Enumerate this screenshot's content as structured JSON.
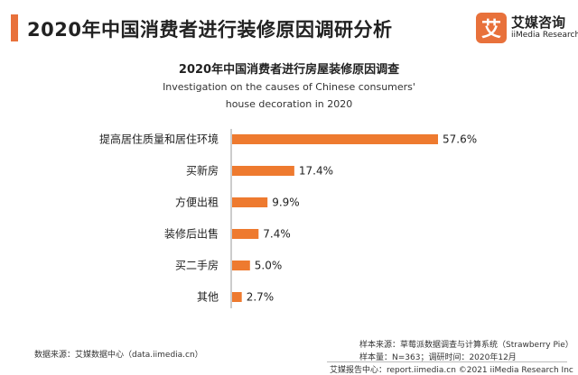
{
  "header": {
    "title": "2020年中国消费者进行装修原因调研分析",
    "logo_glyph": "艾",
    "brand_cn": "艾媒咨询",
    "brand_en": "iiMedia Research"
  },
  "colors": {
    "accent": "#e8713b",
    "bar": "#ee7a2f",
    "logo_bg": "#e8713b"
  },
  "chart_data": {
    "type": "bar",
    "orientation": "horizontal",
    "title": "2020年中国消费者进行房屋装修原因调查",
    "subtitle_lines": [
      "Investigation on the causes of Chinese consumers'",
      "house decoration in 2020"
    ],
    "categories": [
      "提高居住质量和居住环境",
      "买新房",
      "方便出租",
      "装修后出售",
      "买二手房",
      "其他"
    ],
    "values": [
      57.6,
      17.4,
      9.9,
      7.4,
      5.0,
      2.7
    ],
    "value_labels": [
      "57.6%",
      "17.4%",
      "9.9%",
      "7.4%",
      "5.0%",
      "2.7%"
    ],
    "xlim": [
      0,
      57.6
    ],
    "grid": false,
    "legend": "none"
  },
  "footer": {
    "source_left": "数据来源：艾媒数据中心（data.iimedia.cn）",
    "sample_source": "样本来源：草莓派数据调查与计算系统（Strawberry Pie）",
    "sample_info": "样本量：N=363；调研时间：2020年12月",
    "bottom": "艾媒报告中心：report.iimedia.cn  ©2021  iiMedia Research  Inc"
  }
}
